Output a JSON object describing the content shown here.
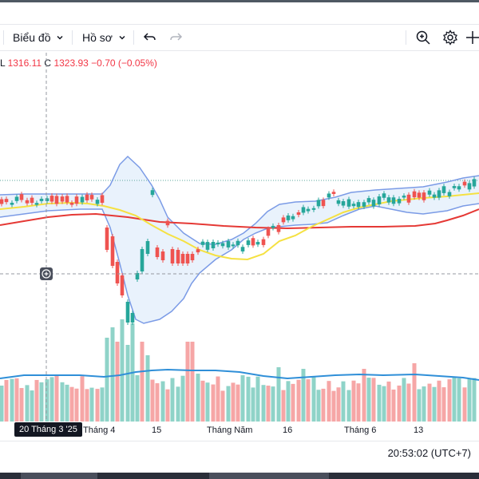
{
  "toolbar": {
    "chart_label": "Biểu đồ",
    "profile_label": "Hồ sơ",
    "icons": [
      "chevron-down-icon",
      "undo-icon",
      "redo-icon",
      "zoom-icon",
      "gear-icon",
      "crosshair-icon"
    ]
  },
  "ohlc": {
    "low_label": "L",
    "low": "1316.11",
    "close_label": "C",
    "close": "1323.93",
    "change": "−0.70 (−0.05%)"
  },
  "xaxis": {
    "cursor_label": "20 Tháng 3 '25",
    "labels": [
      "Tháng 4",
      "15",
      "Tháng Năm",
      "16",
      "Tháng 6",
      "13"
    ]
  },
  "status": {
    "time": "20:53:02 (UTC+7)"
  },
  "colors": {
    "up": "#26a69a",
    "down": "#ef5350",
    "sma": "#e53935",
    "ema": "#f5e142",
    "bollinger": "#7b9be6",
    "volume_ma": "#2f8fd8"
  },
  "chart_data": {
    "type": "candlestick",
    "indicators": [
      "Bollinger Bands",
      "Moving Average (yellow)",
      "Moving Average (red)",
      "Volume",
      "Volume MA"
    ],
    "last_close": 1323.93,
    "change": -0.7,
    "change_pct": -0.05
  }
}
